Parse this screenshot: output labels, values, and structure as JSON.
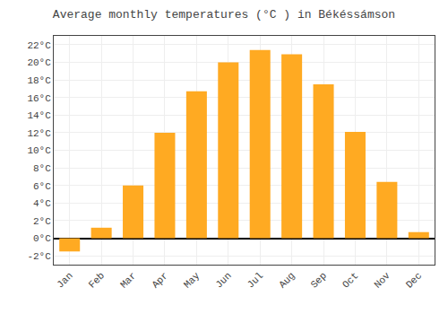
{
  "chart_data": {
    "type": "bar",
    "title": "Average monthly temperatures (°C ) in Békéssámson",
    "categories": [
      "Jan",
      "Feb",
      "Mar",
      "Apr",
      "May",
      "Jun",
      "Jul",
      "Aug",
      "Sep",
      "Oct",
      "Nov",
      "Dec"
    ],
    "values": [
      -1.5,
      1.2,
      6.0,
      12.0,
      16.7,
      20.0,
      21.4,
      20.9,
      17.5,
      12.1,
      6.4,
      0.7
    ],
    "color": "#FFAA22",
    "ylim": [
      -3,
      23
    ],
    "yticks": [
      {
        "value": -2,
        "label": "-2°C"
      },
      {
        "value": 0,
        "label": "0°C"
      },
      {
        "value": 2,
        "label": "2°C"
      },
      {
        "value": 4,
        "label": "4°C"
      },
      {
        "value": 6,
        "label": "6°C"
      },
      {
        "value": 8,
        "label": "8°C"
      },
      {
        "value": 10,
        "label": "10°C"
      },
      {
        "value": 12,
        "label": "12°C"
      },
      {
        "value": 14,
        "label": "14°C"
      },
      {
        "value": 16,
        "label": "16°C"
      },
      {
        "value": 18,
        "label": "18°C"
      },
      {
        "value": 20,
        "label": "20°C"
      },
      {
        "value": 22,
        "label": "22°C"
      }
    ],
    "grid": true
  }
}
